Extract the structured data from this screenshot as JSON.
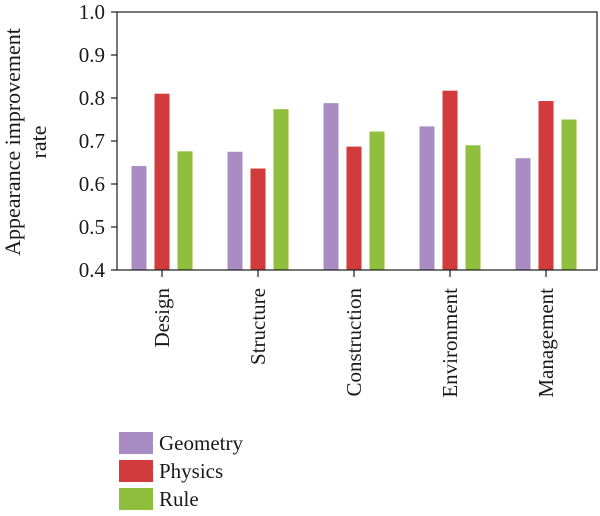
{
  "chart_data": {
    "type": "bar",
    "title": "",
    "xlabel": "",
    "ylabel": "Appearance improvement rate",
    "ylabel_lines": [
      "Appearance improvement",
      "rate"
    ],
    "categories": [
      "Design",
      "Structure",
      "Construction",
      "Environment",
      "Management"
    ],
    "series": [
      {
        "name": "Geometry",
        "color": "#a98cc3",
        "values": [
          0.642,
          0.675,
          0.788,
          0.734,
          0.66
        ]
      },
      {
        "name": "Physics",
        "color": "#d23b3b",
        "values": [
          0.81,
          0.636,
          0.687,
          0.817,
          0.793
        ]
      },
      {
        "name": "Rule",
        "color": "#8fbf3c",
        "values": [
          0.676,
          0.774,
          0.722,
          0.69,
          0.75
        ]
      }
    ],
    "ylim": [
      0.4,
      1.0
    ],
    "yticks": [
      "0.4",
      "0.5",
      "0.6",
      "0.7",
      "0.8",
      "0.9",
      "1.0"
    ],
    "grid": false,
    "legend_position": "bottom-left"
  }
}
